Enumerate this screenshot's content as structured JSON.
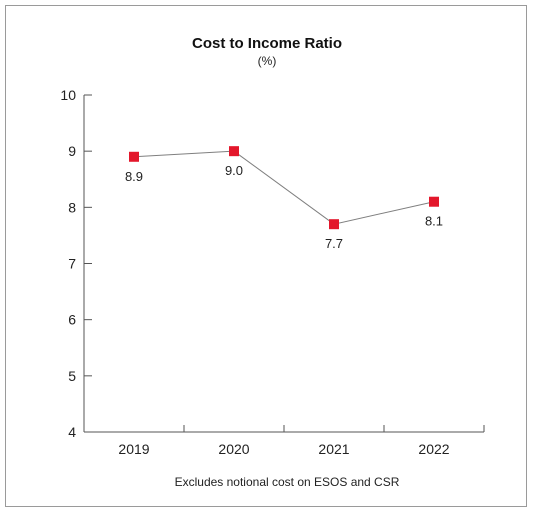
{
  "chart_data": {
    "type": "line",
    "title": "Cost to Income Ratio",
    "subtitle": "(%)",
    "categories": [
      "2019",
      "2020",
      "2021",
      "2022"
    ],
    "series": [
      {
        "values": [
          8.9,
          9.0,
          7.7,
          8.1
        ],
        "labels": [
          "8.9",
          "9.0",
          "7.7",
          "8.1"
        ]
      }
    ],
    "ylim": [
      4,
      10
    ],
    "yticks": [
      "4",
      "5",
      "6",
      "7",
      "8",
      "9",
      "10"
    ],
    "note": "Excludes notional cost on ESOS and CSR",
    "grid": false,
    "marker": "square",
    "colors": {
      "marker": "#e3172b",
      "line": "#7f7f7f",
      "axis": "#555555"
    }
  }
}
